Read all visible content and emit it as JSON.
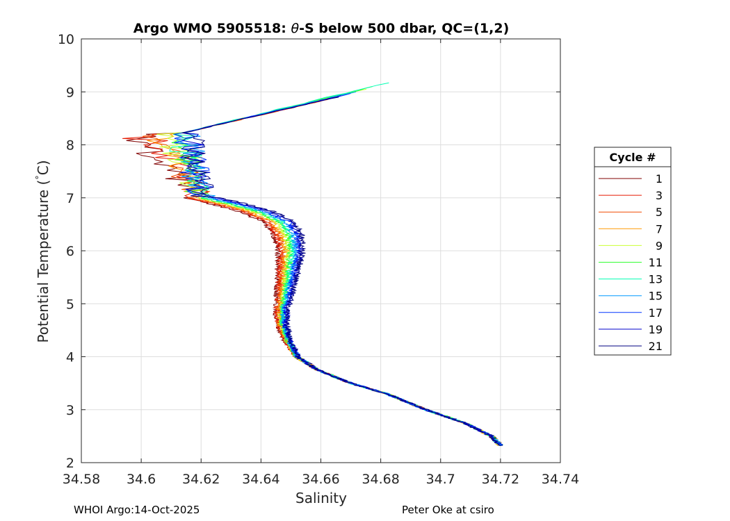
{
  "chart_data": {
    "type": "line",
    "title_prefix": "Argo WMO 5905518: ",
    "title_theta": "θ",
    "title_suffix": "-S below 500 dbar,  QC=(1,2)",
    "xlabel": "Salinity",
    "ylabel_prefix": "Potential Temperature (",
    "ylabel_deg": "°",
    "ylabel_suffix": "C)",
    "xlim": [
      34.58,
      34.74
    ],
    "ylim": [
      2,
      10
    ],
    "xticks": [
      34.58,
      34.6,
      34.62,
      34.64,
      34.66,
      34.68,
      34.7,
      34.72,
      34.74
    ],
    "xtick_labels": [
      "34.58",
      "34.6",
      "34.62",
      "34.64",
      "34.66",
      "34.68",
      "34.7",
      "34.72",
      "34.74"
    ],
    "yticks": [
      2,
      3,
      4,
      5,
      6,
      7,
      8,
      9,
      10
    ],
    "ytick_labels": [
      "2",
      "3",
      "4",
      "5",
      "6",
      "7",
      "8",
      "9",
      "10"
    ],
    "grid": true,
    "legend_title": "Cycle #",
    "legend_position": "outside-right",
    "series": [
      {
        "name": "1",
        "color": "#800000",
        "smin": 34.5905,
        "tmax": 8.93,
        "off": -0.006
      },
      {
        "name": "3",
        "color": "#e61900",
        "smin": 34.5955,
        "tmax": 8.9,
        "off": -0.0048
      },
      {
        "name": "5",
        "color": "#f04a00",
        "smin": 34.6005,
        "tmax": 8.88,
        "off": -0.0036
      },
      {
        "name": "7",
        "color": "#ff9900",
        "smin": 34.6035,
        "tmax": 8.95,
        "off": -0.0024
      },
      {
        "name": "9",
        "color": "#ccff33",
        "smin": 34.6065,
        "tmax": 9.05,
        "off": -0.0012
      },
      {
        "name": "11",
        "color": "#33ff33",
        "smin": 34.6085,
        "tmax": 9.1,
        "off": 0.0
      },
      {
        "name": "13",
        "color": "#00ffb3",
        "smin": 34.6105,
        "tmax": 9.17,
        "off": 0.0012
      },
      {
        "name": "15",
        "color": "#0099ff",
        "smin": 34.6125,
        "tmax": 9.0,
        "off": 0.0024
      },
      {
        "name": "17",
        "color": "#0033ff",
        "smin": 34.6145,
        "tmax": 8.97,
        "off": 0.0036
      },
      {
        "name": "19",
        "color": "#0000cc",
        "smin": 34.6155,
        "tmax": 8.93,
        "off": 0.0048
      },
      {
        "name": "21",
        "color": "#000080",
        "smin": 34.6165,
        "tmax": 8.9,
        "off": 0.006
      }
    ],
    "profile_shape": [
      {
        "t": 2.32,
        "s": 34.72
      },
      {
        "t": 2.5,
        "s": 34.717
      },
      {
        "t": 2.75,
        "s": 34.708
      },
      {
        "t": 3.0,
        "s": 34.695
      },
      {
        "t": 3.3,
        "s": 34.682
      },
      {
        "t": 3.5,
        "s": 34.67
      },
      {
        "t": 3.75,
        "s": 34.659
      },
      {
        "t": 4.0,
        "s": 34.652
      },
      {
        "t": 4.3,
        "s": 34.649
      },
      {
        "t": 4.6,
        "s": 34.647
      },
      {
        "t": 4.9,
        "s": 34.647
      },
      {
        "t": 5.2,
        "s": 34.648
      },
      {
        "t": 5.6,
        "s": 34.649
      },
      {
        "t": 6.0,
        "s": 34.65
      },
      {
        "t": 6.3,
        "s": 34.649
      },
      {
        "t": 6.55,
        "s": 34.646
      },
      {
        "t": 6.75,
        "s": 34.638
      },
      {
        "t": 6.9,
        "s": 34.628
      },
      {
        "t": 7.0,
        "s": 34.62
      }
    ]
  },
  "footer": {
    "left": "WHOI Argo:14-Oct-2025",
    "right": "Peter Oke at csiro"
  }
}
